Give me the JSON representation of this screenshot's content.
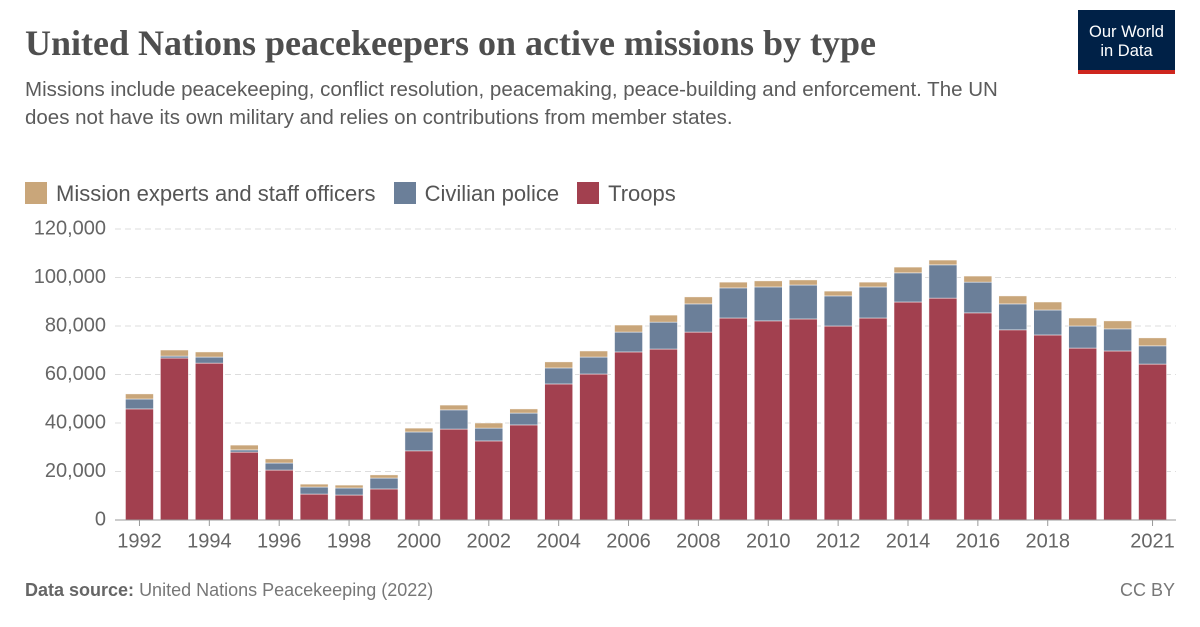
{
  "chart_data": {
    "type": "stacked_bar",
    "title": "United Nations peacekeepers on active missions by type",
    "subtitle": "Missions include peacekeeping, conflict resolution, peacemaking, peace-building and enforcement. The UN does not have its own military and relies on contributions from member states.",
    "logo": [
      "Our World",
      "in Data"
    ],
    "source_label": "Data source:",
    "source": "United Nations Peacekeeping (2022)",
    "license": "CC BY",
    "categories": [
      "1992",
      null,
      "1994",
      null,
      "1996",
      null,
      "1998",
      null,
      "2000",
      null,
      "2002",
      null,
      "2004",
      null,
      "2006",
      null,
      "2008",
      null,
      "2010",
      null,
      "2012",
      null,
      "2014",
      null,
      "2016",
      null,
      "2018",
      null,
      null,
      "2021"
    ],
    "series": [
      {
        "name": "Mission experts and staff officers",
        "color": "#c9a67a",
        "values": [
          2100,
          2500,
          2100,
          2000,
          1700,
          1200,
          1200,
          1300,
          1600,
          2000,
          2100,
          1700,
          2500,
          2500,
          2900,
          2900,
          2900,
          2400,
          2500,
          2100,
          2000,
          2000,
          2400,
          2000,
          2500,
          3300,
          3300,
          3300,
          3300,
          3300
        ]
      },
      {
        "name": "Civilian police",
        "color": "#6b7f99",
        "values": [
          4100,
          800,
          2500,
          900,
          2900,
          2900,
          2900,
          4500,
          7800,
          7900,
          5300,
          4900,
          6600,
          7000,
          8200,
          11100,
          11600,
          12400,
          14000,
          14000,
          12400,
          12800,
          12000,
          13700,
          12700,
          10700,
          10300,
          9100,
          9100,
          7500
        ]
      },
      {
        "name": "Troops",
        "color": "#a2404f",
        "values": [
          45800,
          66800,
          64700,
          28000,
          20600,
          10700,
          10300,
          12800,
          28500,
          37500,
          32600,
          39200,
          56100,
          60200,
          69300,
          70500,
          77500,
          83300,
          82100,
          82900,
          80000,
          83300,
          89900,
          91500,
          85400,
          78400,
          76300,
          70900,
          69700,
          64300
        ]
      }
    ],
    "ylim": [
      0,
      120000
    ],
    "yticks": [
      0,
      {
        "value": 20000,
        "label": "20,000"
      },
      {
        "value": 40000,
        "label": "40,000"
      },
      {
        "value": 60000,
        "label": "60,000"
      },
      {
        "value": 80000,
        "label": "80,000"
      },
      {
        "value": 100000,
        "label": "100,000"
      },
      {
        "value": 120000,
        "label": "120,000"
      }
    ],
    "grid": true
  }
}
